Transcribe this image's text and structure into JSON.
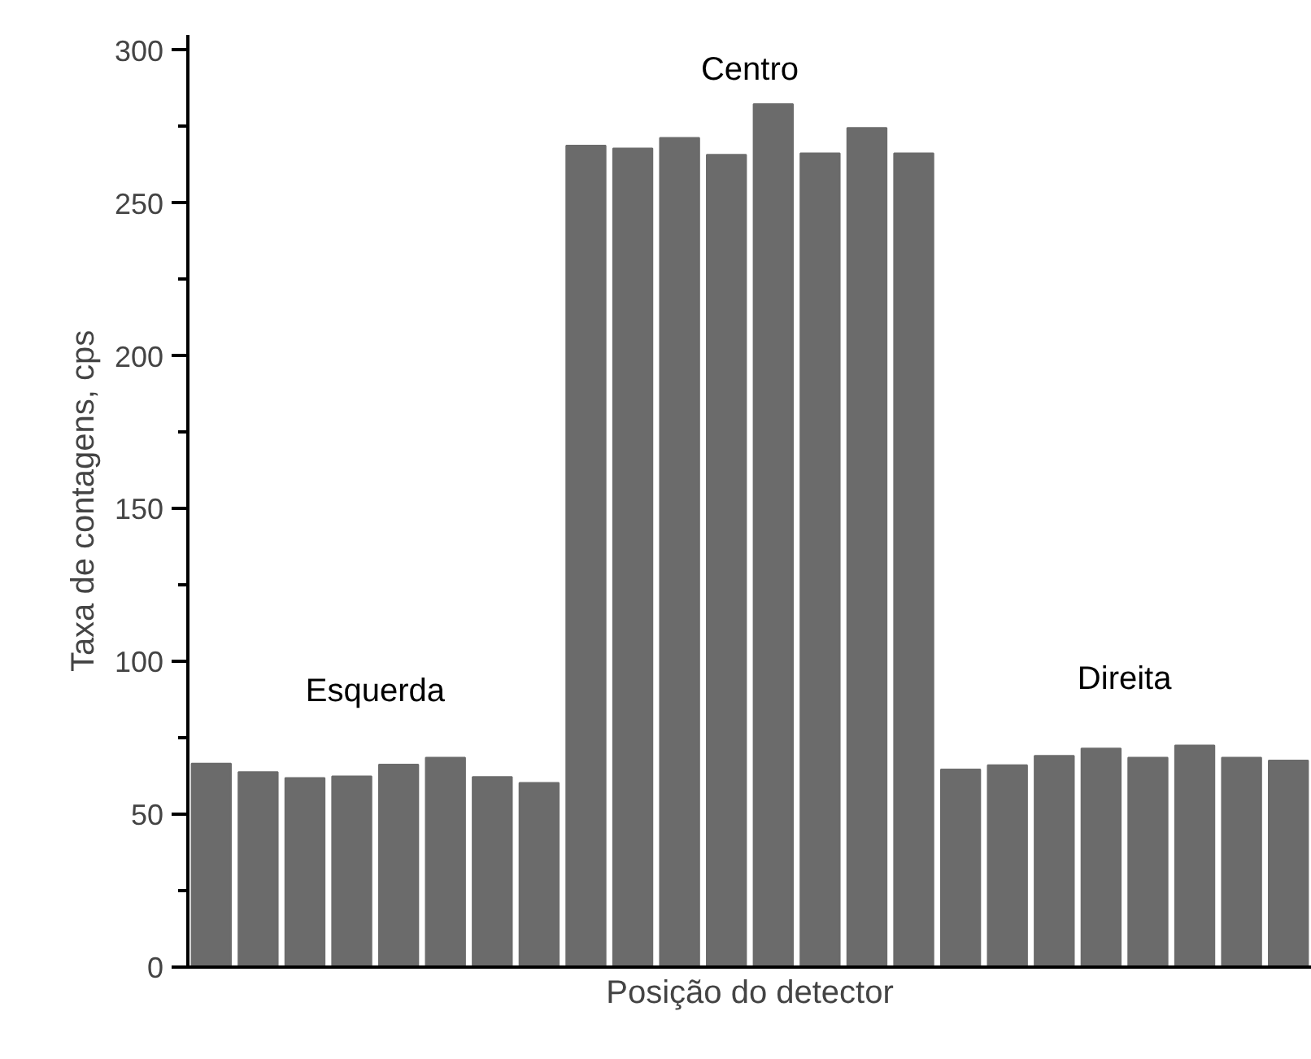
{
  "chart_data": {
    "type": "bar",
    "xlabel": "Posição do detector",
    "ylabel": "Taxa de contagens, cps",
    "categories": [
      null,
      null,
      null,
      null,
      null,
      null,
      null,
      null,
      null,
      null,
      null,
      null,
      null,
      null,
      null,
      null,
      null,
      null,
      null,
      null,
      null,
      null,
      null,
      null
    ],
    "values": [
      66.6,
      63.8,
      61.9,
      62.4,
      66.3,
      68.5,
      62.2,
      60.3,
      268.8,
      267.9,
      271.3,
      265.8,
      282.4,
      266.3,
      274.6,
      266.3,
      64.7,
      66.1,
      69.1,
      71.5,
      68.5,
      72.5,
      68.5,
      67.6
    ],
    "color": "#6b6b6b",
    "ylim": [
      0,
      305
    ],
    "yticks": [
      0,
      50,
      100,
      150,
      200,
      250,
      300
    ],
    "grid": false,
    "annotations": [
      "Esquerda",
      "Centro",
      "Direita"
    ]
  }
}
